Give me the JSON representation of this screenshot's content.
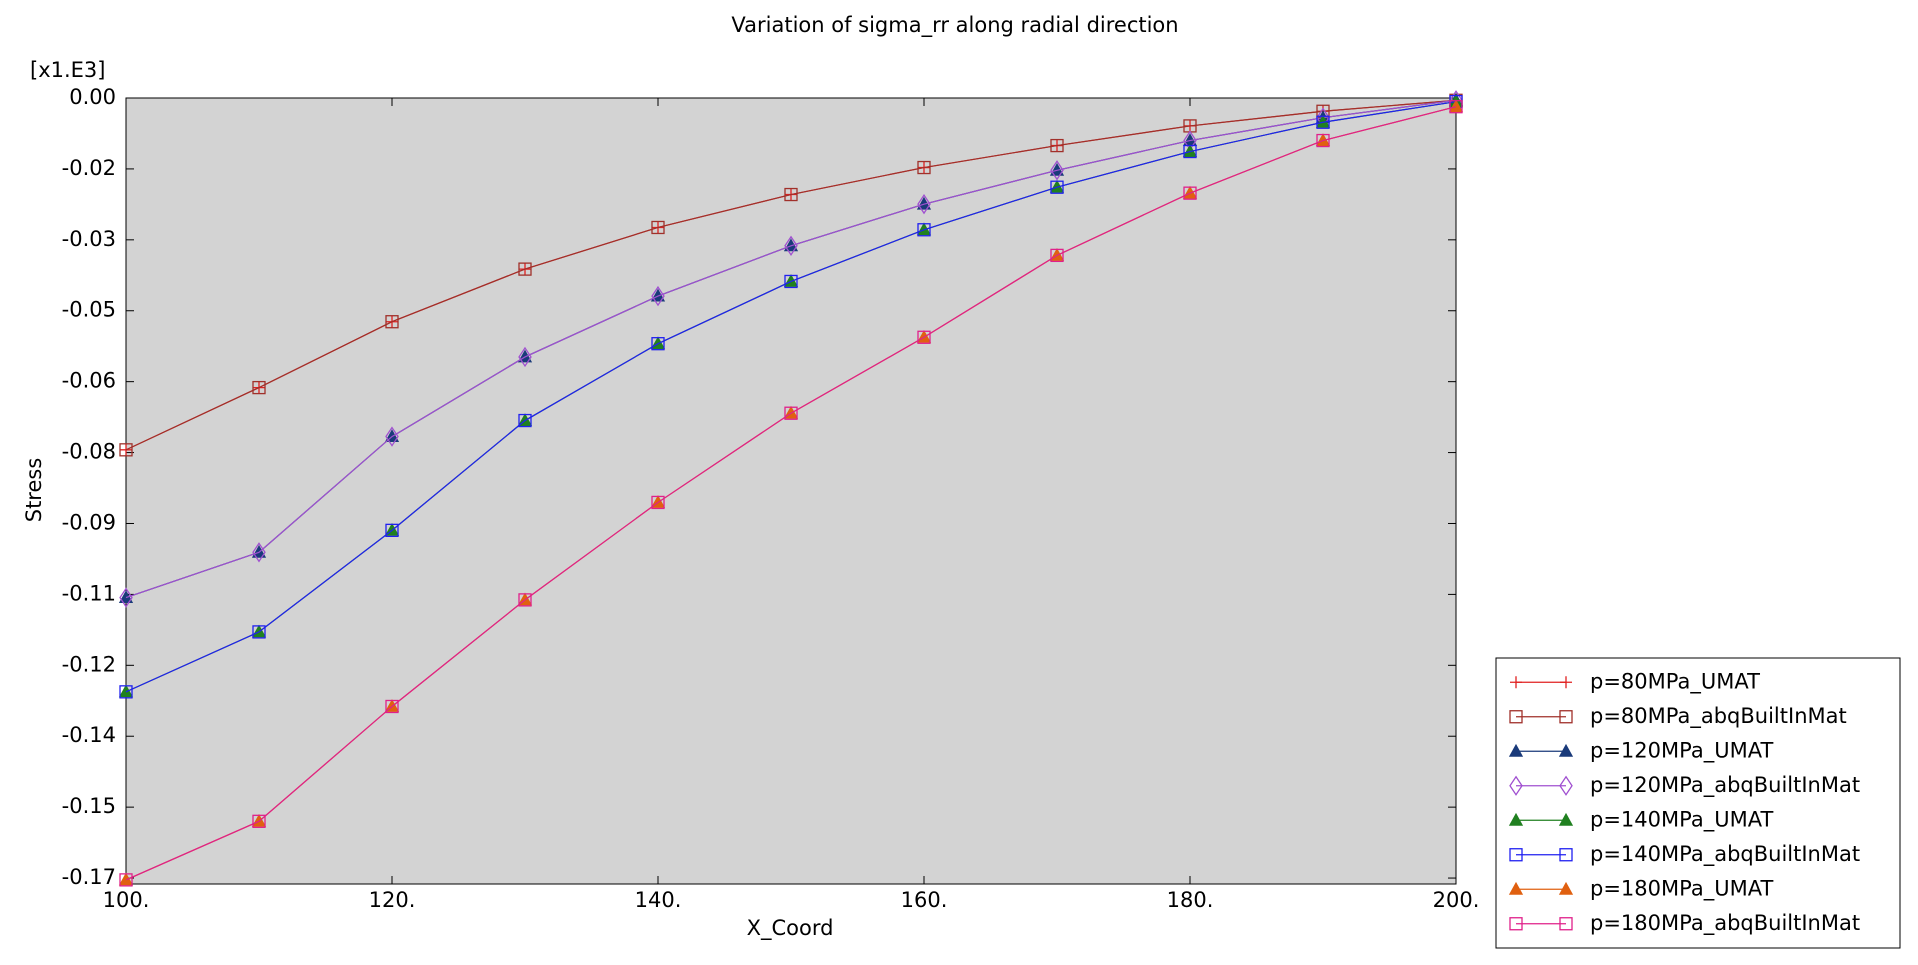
{
  "chart_data": {
    "type": "line",
    "title": "Variation of sigma_rr along radial direction",
    "x_label": "X_Coord",
    "y_label": "Stress",
    "y_multiplier": "[x1.E3]",
    "x": [
      100,
      110,
      120,
      130,
      140,
      150,
      160,
      170,
      180,
      190,
      200
    ],
    "xlim": [
      100,
      200
    ],
    "xticks": [
      {
        "value": 100,
        "label": "100."
      },
      {
        "value": 120,
        "label": "120."
      },
      {
        "value": 140,
        "label": "140."
      },
      {
        "value": 160,
        "label": "160."
      },
      {
        "value": 180,
        "label": "180."
      },
      {
        "value": 200,
        "label": "200."
      }
    ],
    "ylim": [
      -0.1718,
      0
    ],
    "yticks": [
      {
        "value": 0,
        "label": "0.00"
      },
      {
        "value": -0.0155,
        "label": "-0.02"
      },
      {
        "value": -0.031,
        "label": "-0.03"
      },
      {
        "value": -0.0465,
        "label": "-0.05"
      },
      {
        "value": -0.062,
        "label": "-0.06"
      },
      {
        "value": -0.0775,
        "label": "-0.08"
      },
      {
        "value": -0.093,
        "label": "-0.09"
      },
      {
        "value": -0.1085,
        "label": "-0.11"
      },
      {
        "value": -0.124,
        "label": "-0.12"
      },
      {
        "value": -0.1395,
        "label": "-0.14"
      },
      {
        "value": -0.155,
        "label": "-0.15"
      },
      {
        "value": -0.1705,
        "label": "-0.17"
      }
    ],
    "legend": "bottom-right",
    "series": [
      {
        "name": "p=80MPa_UMAT",
        "color": "#e02020",
        "marker": "plus",
        "values": [
          -0.0769,
          -0.0633,
          -0.0489,
          -0.0374,
          -0.0283,
          -0.0211,
          -0.0152,
          -0.0104,
          -0.0061,
          -0.0029,
          -0.0005
        ]
      },
      {
        "name": "p=80MPa_abqBuiltInMat",
        "color": "#a0302a",
        "marker": "square",
        "values": [
          -0.0769,
          -0.0633,
          -0.0489,
          -0.0374,
          -0.0283,
          -0.0211,
          -0.0152,
          -0.0104,
          -0.0061,
          -0.0029,
          -0.0005
        ]
      },
      {
        "name": "p=120MPa_UMAT",
        "color": "#1a3a7a",
        "marker": "triangle",
        "values": [
          -0.1092,
          -0.0993,
          -0.074,
          -0.0566,
          -0.0433,
          -0.0323,
          -0.0232,
          -0.0158,
          -0.0093,
          -0.0043,
          -0.0005
        ]
      },
      {
        "name": "p=120MPa_abqBuiltInMat",
        "color": "#a050d0",
        "marker": "diamond",
        "values": [
          -0.1092,
          -0.0993,
          -0.074,
          -0.0566,
          -0.0433,
          -0.0323,
          -0.0232,
          -0.0158,
          -0.0093,
          -0.0043,
          -0.0005
        ]
      },
      {
        "name": "p=140MPa_UMAT",
        "color": "#208020",
        "marker": "triangle",
        "values": [
          -0.1298,
          -0.1167,
          -0.0945,
          -0.0705,
          -0.0537,
          -0.0401,
          -0.0288,
          -0.0195,
          -0.0117,
          -0.0053,
          -0.0008
        ]
      },
      {
        "name": "p=140MPa_abqBuiltInMat",
        "color": "#2020f0",
        "marker": "square",
        "values": [
          -0.1298,
          -0.1167,
          -0.0945,
          -0.0705,
          -0.0537,
          -0.0401,
          -0.0288,
          -0.0195,
          -0.0117,
          -0.0053,
          -0.0008
        ]
      },
      {
        "name": "p=180MPa_UMAT",
        "color": "#e06010",
        "marker": "triangle",
        "values": [
          -0.1709,
          -0.1581,
          -0.133,
          -0.1097,
          -0.0884,
          -0.0689,
          -0.0523,
          -0.0344,
          -0.0208,
          -0.0093,
          -0.0019
        ]
      },
      {
        "name": "p=180MPa_abqBuiltInMat",
        "color": "#e0208a",
        "marker": "square",
        "values": [
          -0.1709,
          -0.1581,
          -0.133,
          -0.1097,
          -0.0884,
          -0.0689,
          -0.0523,
          -0.0344,
          -0.0208,
          -0.0093,
          -0.0019
        ]
      }
    ]
  }
}
